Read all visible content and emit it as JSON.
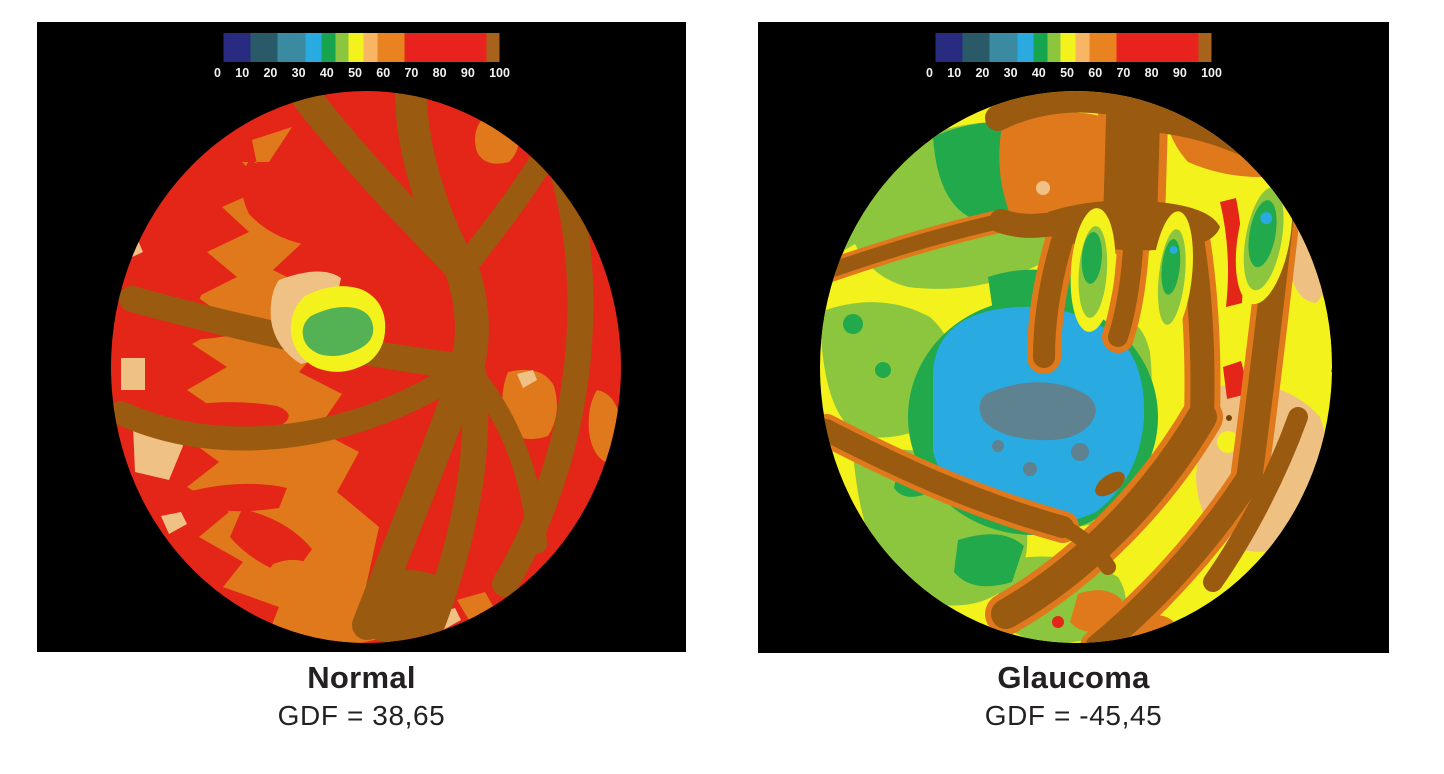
{
  "figure": {
    "background": "#ffffff",
    "panel_background": "#000000",
    "text_color": "#232021",
    "tick_text_color": "#f2f2f2"
  },
  "colorbar": {
    "range": [
      0,
      100
    ],
    "ticks": [
      "0",
      "10",
      "20",
      "30",
      "40",
      "50",
      "60",
      "70",
      "80",
      "90",
      "100"
    ],
    "segments": [
      {
        "name": "navy",
        "color": "#282b80",
        "width_pct": 10.0
      },
      {
        "name": "dark-teal",
        "color": "#2a5a68",
        "width_pct": 9.5
      },
      {
        "name": "teal",
        "color": "#3a8ba1",
        "width_pct": 10.3
      },
      {
        "name": "cyan-blue",
        "color": "#29aae1",
        "width_pct": 5.9
      },
      {
        "name": "green",
        "color": "#16a54e",
        "width_pct": 4.8
      },
      {
        "name": "light-green",
        "color": "#8cc63f",
        "width_pct": 4.8
      },
      {
        "name": "yellow",
        "color": "#f4f21d",
        "width_pct": 5.5
      },
      {
        "name": "peach",
        "color": "#f8b664",
        "width_pct": 5.1
      },
      {
        "name": "orange",
        "color": "#e8831f",
        "width_pct": 9.6
      },
      {
        "name": "red",
        "color": "#e8231d",
        "width_pct": 29.7
      },
      {
        "name": "brown",
        "color": "#a7631b",
        "width_pct": 4.8
      }
    ]
  },
  "panels": [
    {
      "title": "Normal",
      "caption": "GDF = 38,65",
      "gdf_value": "38,65"
    },
    {
      "title": "Glaucoma",
      "caption": "GDF = -45,45",
      "gdf_value": "-45,45"
    }
  ],
  "palette": {
    "map_red": "#e32617",
    "map_orange": "#e0791c",
    "map_brown_vessels": "#9a5a10",
    "map_peach": "#efc185",
    "map_tan": "#eec182",
    "map_yellow": "#f4f21d",
    "map_light_green": "#8cc63f",
    "map_green": "#21a94c",
    "map_cyan_blue": "#29aae1",
    "map_slate": "#5e828f"
  },
  "chart_data": {
    "type": "heatmap",
    "title": "",
    "value_range": [
      0,
      100
    ],
    "colorbar_ticks": [
      0,
      10,
      20,
      30,
      40,
      50,
      60,
      70,
      80,
      90,
      100
    ],
    "legend_position": "top",
    "panels": [
      {
        "label": "Normal",
        "gdf": 38.65,
        "gdf_display": "38,65",
        "dominant_values": "70-100",
        "description": "Circular retinal probability map, mostly red (80-100) with an orange (60-70) temporal crescent on the left, brown retinal vessel tree radiating from a hub right of center, a small yellow-ringed green optic-disc spot (40-60) left of center, and scattered peach flecks (50-60)."
      },
      {
        "label": "Glaucoma",
        "gdf": -45.45,
        "gdf_display": "-45,45",
        "dominant_values": "30-60",
        "description": "Circular retinal probability map, yellow/light-green field (40-60) with a large cyan-blue depression (30-40) left of center containing a grey-teal core (20-30), thick brown vessel trunk with finger-like branches, orange/tan sectors (50-70) on the right, and sparse red patches (80-100)."
      }
    ]
  }
}
